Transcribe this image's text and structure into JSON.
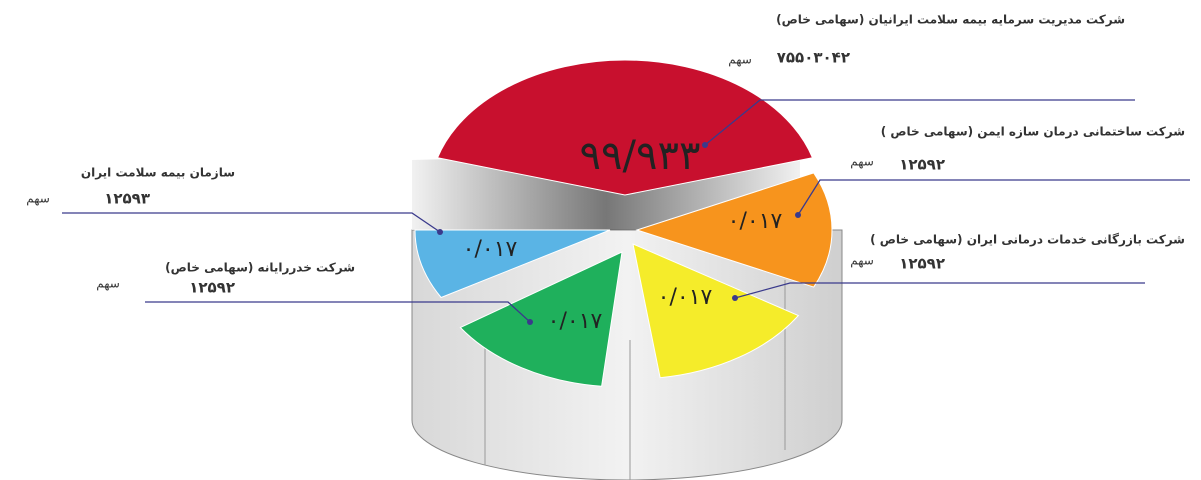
{
  "chart_data": {
    "type": "pie",
    "categories": [
      "شرکت مدیریت سرمایه بیمه سلامت ایرانیان (سهامی خاص)",
      "شرکت ساختمانی درمان سازه ایمن (سهامی خاص )",
      "شرکت بازرگانی خدمات درمانی ایران (سهامی خاص )",
      "شرکت خدررایانه (سهامی خاص)",
      "سازمان بیمه سلامت ایران"
    ],
    "values": [
      99.933,
      0.017,
      0.017,
      0.017,
      0.017
    ],
    "value_labels": [
      "۹۹/۹۳۳",
      "۰/۰۱۷",
      "۰/۰۱۷",
      "۰/۰۱۷",
      "۰/۰۱۷"
    ],
    "shares": [
      75503042,
      12592,
      12592,
      12592,
      12593
    ],
    "share_labels": [
      "۷۵۵۰۳۰۴۲",
      "۱۲۵۹۲",
      "۱۲۵۹۲",
      "۱۲۵۹۲",
      "۱۲۵۹۳"
    ],
    "share_unit": "سهم",
    "colors": [
      "#c8102e",
      "#f7941d",
      "#f5ec2a",
      "#1fb05c",
      "#5ab4e5"
    ]
  }
}
